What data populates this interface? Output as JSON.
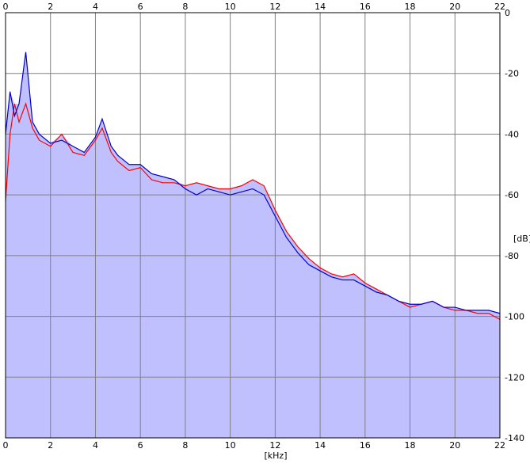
{
  "chart_data": {
    "type": "area",
    "xlabel": "[kHz]",
    "ylabel": "[dB]",
    "xlim": [
      0,
      22
    ],
    "ylim": [
      -140,
      0
    ],
    "x_ticks": [
      "0",
      "2",
      "4",
      "6",
      "8",
      "10",
      "12",
      "14",
      "16",
      "18",
      "20",
      "22"
    ],
    "y_ticks": [
      "0",
      "-20",
      "-40",
      "-60",
      "-80",
      "-100",
      "-120",
      "-140"
    ],
    "grid": true,
    "background_color": "#c0c0ff",
    "grid_color": "#808080",
    "series": [
      {
        "color": "#ff0000",
        "x": [
          0,
          0.2,
          0.4,
          0.6,
          0.9,
          1.2,
          1.5,
          2.0,
          2.5,
          3.0,
          3.5,
          4.0,
          4.3,
          4.7,
          5.0,
          5.5,
          6.0,
          6.5,
          7.0,
          7.5,
          8.0,
          8.5,
          9.0,
          9.5,
          10.0,
          10.5,
          11.0,
          11.5,
          12.0,
          12.5,
          13.0,
          13.5,
          14.0,
          14.5,
          15.0,
          15.5,
          16.0,
          16.5,
          17.0,
          17.5,
          18.0,
          18.5,
          19.0,
          19.5,
          20.0,
          20.5,
          21.0,
          21.5,
          22.0
        ],
        "y": [
          -62,
          -40,
          -30,
          -36,
          -30,
          -38,
          -42,
          -44,
          -40,
          -46,
          -47,
          -42,
          -38,
          -46,
          -49,
          -52,
          -51,
          -55,
          -56,
          -56,
          -57,
          -56,
          -57,
          -58,
          -58,
          -57,
          -55,
          -57,
          -65,
          -72,
          -77,
          -81,
          -84,
          -86,
          -87,
          -86,
          -89,
          -91,
          -93,
          -95,
          -97,
          -96,
          -95,
          -97,
          -98,
          -98,
          -99,
          -99,
          -101
        ]
      },
      {
        "color": "#0000cc",
        "x": [
          0,
          0.2,
          0.4,
          0.6,
          0.9,
          1.2,
          1.5,
          2.0,
          2.5,
          3.0,
          3.5,
          4.0,
          4.3,
          4.7,
          5.0,
          5.5,
          6.0,
          6.5,
          7.0,
          7.5,
          8.0,
          8.5,
          9.0,
          9.5,
          10.0,
          10.5,
          11.0,
          11.5,
          12.0,
          12.5,
          13.0,
          13.5,
          14.0,
          14.5,
          15.0,
          15.5,
          16.0,
          16.5,
          17.0,
          17.5,
          18.0,
          18.5,
          19.0,
          19.5,
          20.0,
          20.5,
          21.0,
          21.5,
          22.0
        ],
        "y": [
          -40,
          -26,
          -34,
          -30,
          -13,
          -36,
          -40,
          -43,
          -42,
          -44,
          -46,
          -41,
          -35,
          -44,
          -47,
          -50,
          -50,
          -53,
          -54,
          -55,
          -58,
          -60,
          -58,
          -59,
          -60,
          -59,
          -58,
          -60,
          -67,
          -74,
          -79,
          -83,
          -85,
          -87,
          -88,
          -88,
          -90,
          -92,
          -93,
          -95,
          -96,
          -96,
          -95,
          -97,
          -97,
          -98,
          -98,
          -98,
          -99
        ]
      }
    ]
  }
}
